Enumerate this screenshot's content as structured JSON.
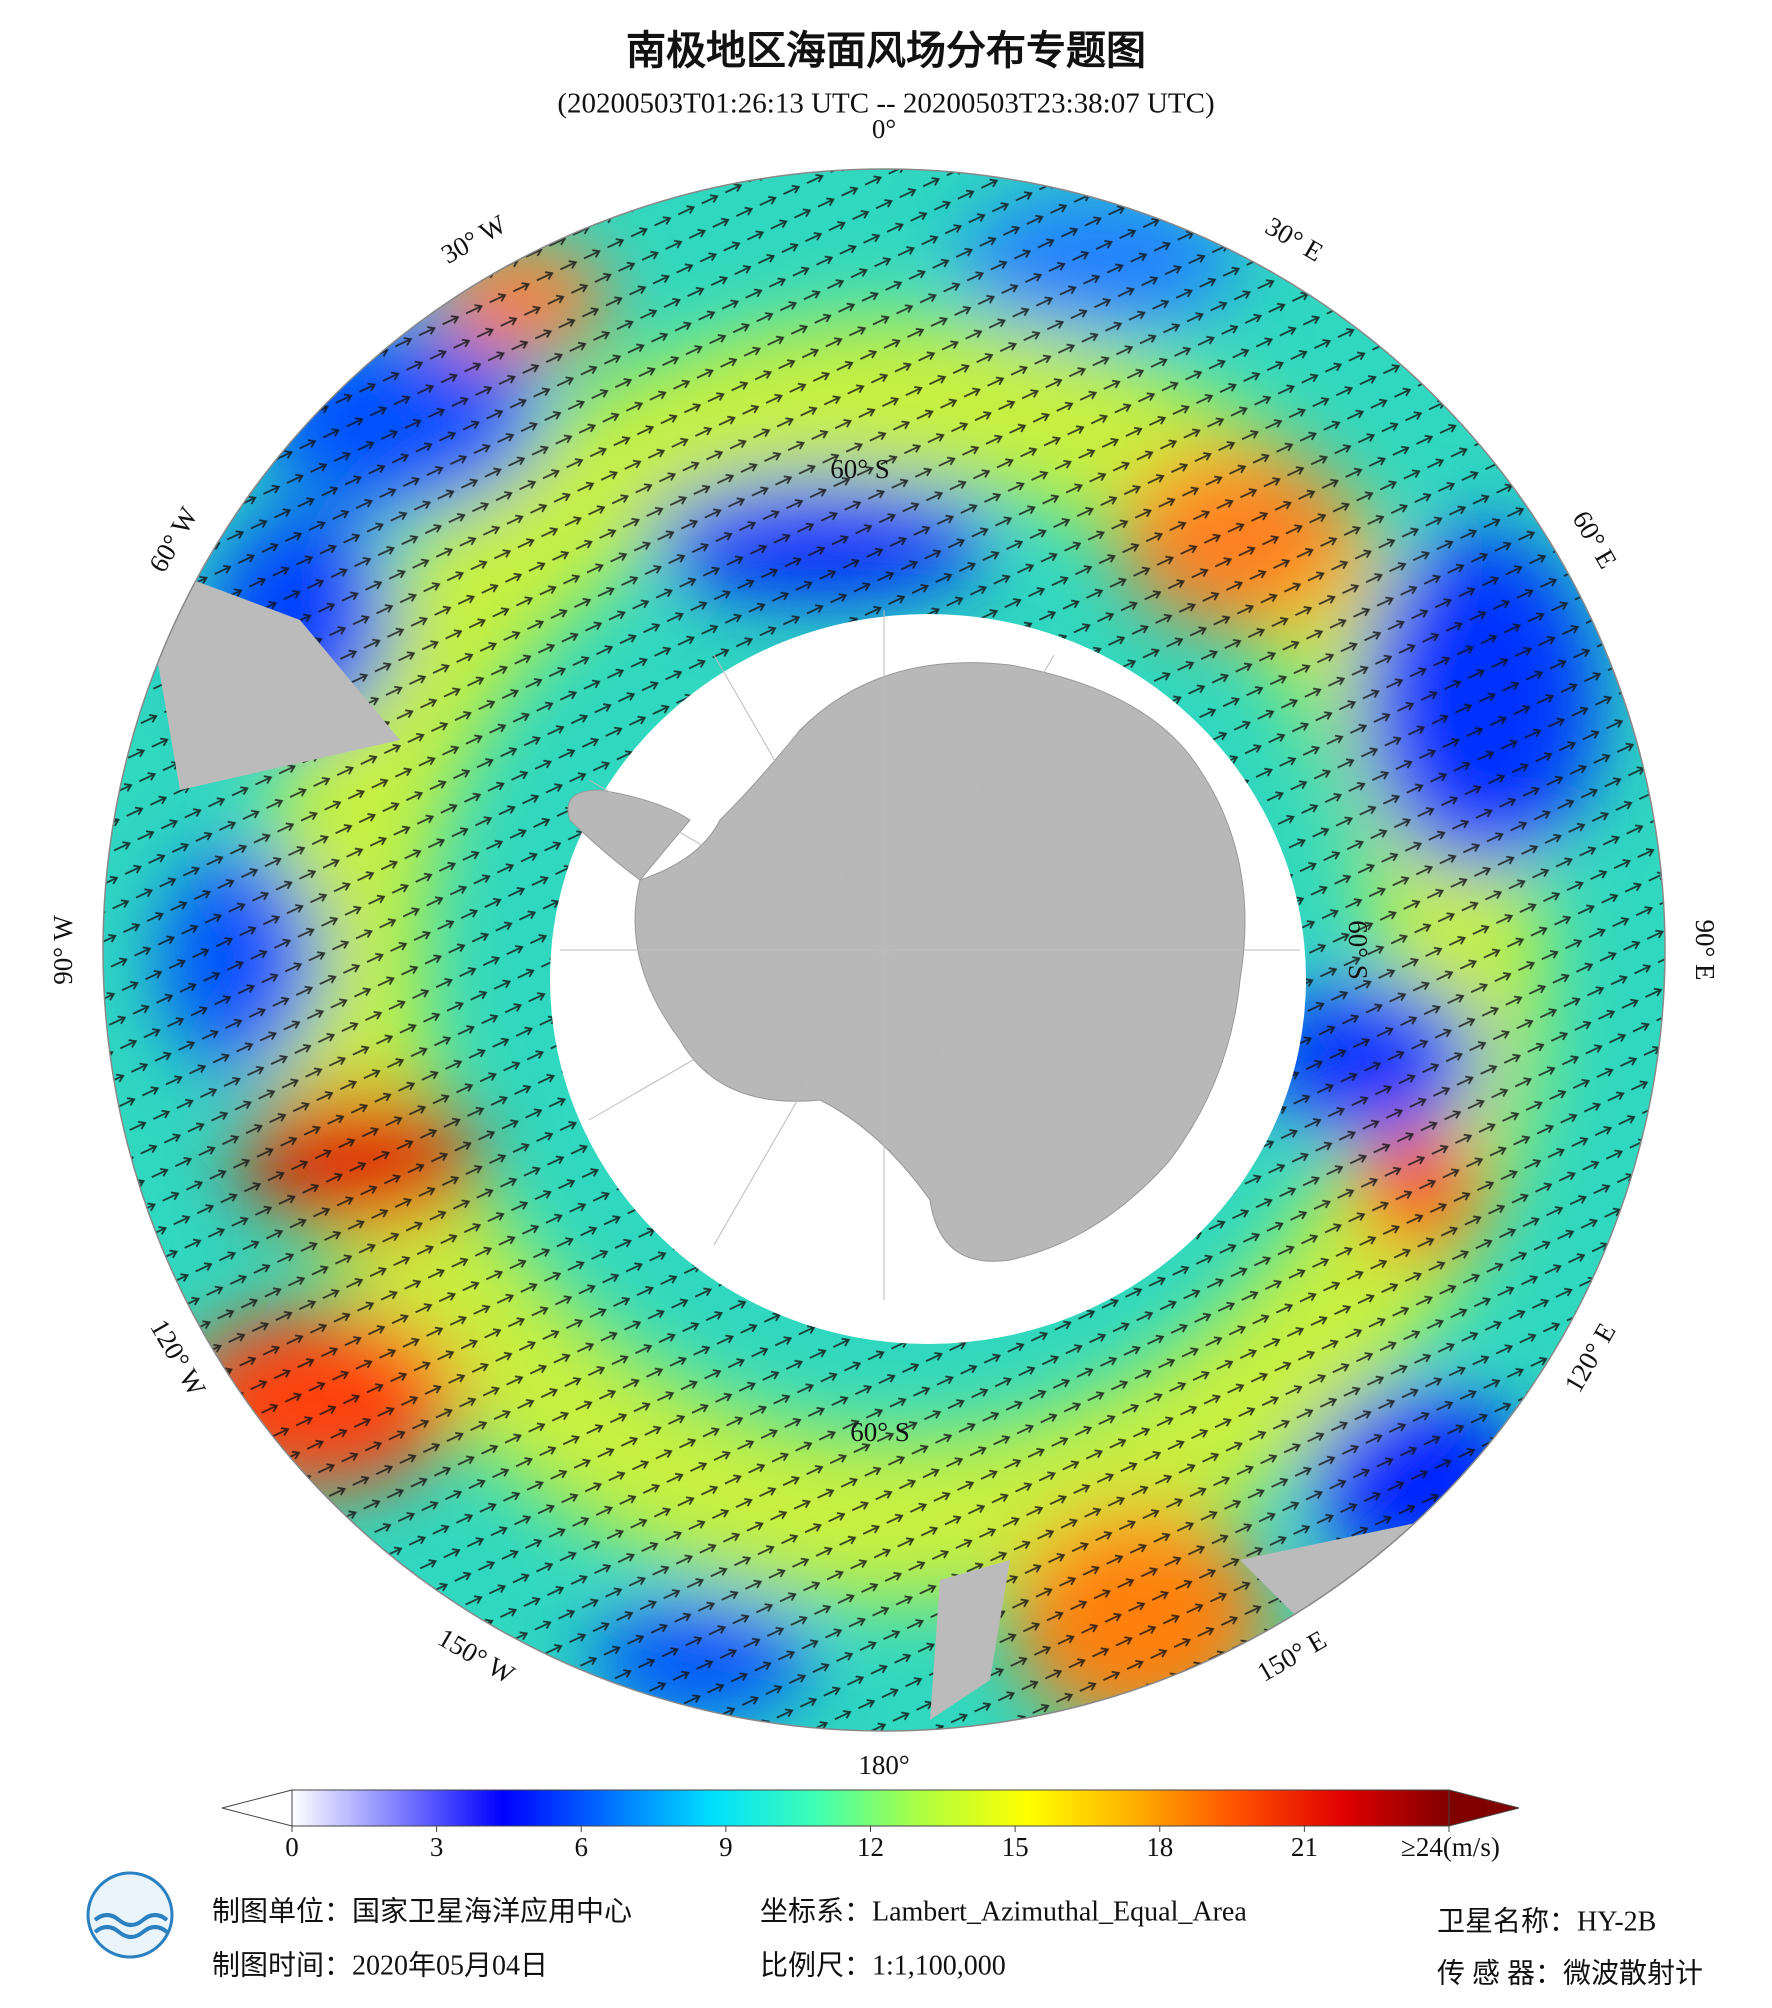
{
  "header": {
    "title": "南极地区海面风场分布专题图",
    "subtitle": "(20200503T01:26:13 UTC -- 20200503T23:38:07 UTC)"
  },
  "map": {
    "longitude_labels": [
      "0°",
      "30° E",
      "60° E",
      "90° E",
      "120° E",
      "150° E",
      "180°",
      "150° W",
      "120° W",
      "90° W",
      "60° W",
      "30° W"
    ],
    "latitude_labels": [
      "60° S",
      "60° S",
      "60° S"
    ]
  },
  "colorbar": {
    "range": [
      0,
      24
    ],
    "ticks": [
      0,
      3,
      6,
      9,
      12,
      15,
      18,
      21,
      {
        "value": 24,
        "label": "≥24(m/s)"
      }
    ],
    "colors": [
      "#ffffff",
      "#8080ff",
      "#0000ff",
      "#0070ff",
      "#00e0ff",
      "#40ffb0",
      "#b0ff40",
      "#ffff00",
      "#ffb000",
      "#ff5000",
      "#e00000",
      "#800000"
    ]
  },
  "footer": {
    "unit": "制图单位：国家卫星海洋应用中心",
    "crs": "坐标系：Lambert_Azimuthal_Equal_Area",
    "satellite": "卫星名称：HY-2B",
    "date": "制图时间：2020年05月04日",
    "scale": "比例尺：1:1,100,000",
    "sensor": "传 感 器：微波散射计"
  }
}
